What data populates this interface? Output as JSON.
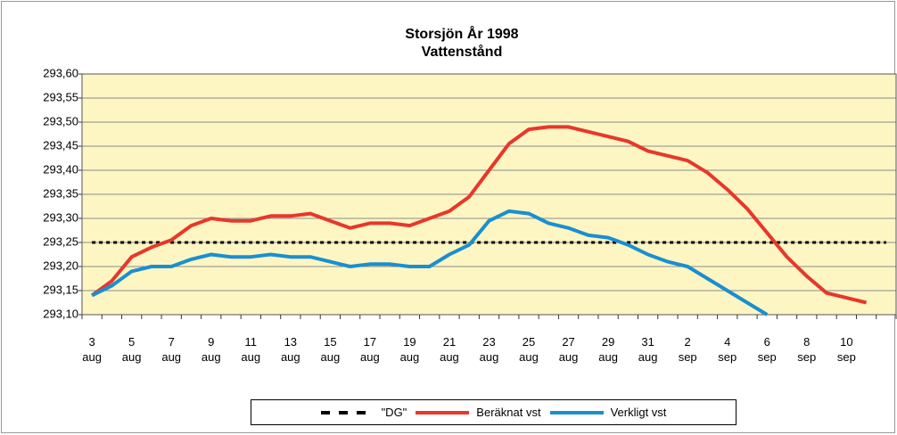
{
  "chart_data": {
    "type": "line",
    "title": "Storsjön År 1998",
    "subtitle": "Vattenstånd",
    "categories": [
      "3 aug",
      null,
      "5 aug",
      null,
      "7 aug",
      null,
      "9 aug",
      null,
      "11 aug",
      null,
      "13 aug",
      null,
      "15 aug",
      null,
      "17 aug",
      null,
      "19 aug",
      null,
      "21 aug",
      null,
      "23 aug",
      null,
      "25 aug",
      null,
      "27 aug",
      null,
      "29 aug",
      null,
      "31 aug",
      null,
      "2 sep",
      null,
      "4 sep",
      null,
      "6 sep",
      null,
      "8 sep",
      null,
      "10 sep",
      null,
      null
    ],
    "series": [
      {
        "name": "\"DG\"",
        "color": "#000000",
        "dashed": true,
        "values": [
          293.25,
          293.25,
          293.25,
          293.25,
          293.25,
          293.25,
          293.25,
          293.25,
          293.25,
          293.25,
          293.25,
          293.25,
          293.25,
          293.25,
          293.25,
          293.25,
          293.25,
          293.25,
          293.25,
          293.25,
          293.25,
          293.25,
          293.25,
          293.25,
          293.25,
          293.25,
          293.25,
          293.25,
          293.25,
          293.25,
          293.25,
          293.25,
          293.25,
          293.25,
          293.25,
          293.25,
          293.25,
          293.25,
          293.25,
          293.25,
          293.25
        ]
      },
      {
        "name": "Beräknat vst",
        "color": "#e8372b",
        "values": [
          293.14,
          293.17,
          293.22,
          293.24,
          293.255,
          293.285,
          293.3,
          293.295,
          293.295,
          293.305,
          293.305,
          293.31,
          293.295,
          293.28,
          293.29,
          293.29,
          293.285,
          293.3,
          293.315,
          293.345,
          293.4,
          293.455,
          293.485,
          293.49,
          293.49,
          293.48,
          293.47,
          293.46,
          293.44,
          293.43,
          293.42,
          293.395,
          293.36,
          293.32,
          293.27,
          293.22,
          293.18,
          293.145,
          293.135,
          293.125,
          null
        ]
      },
      {
        "name": "Verkligt vst",
        "color": "#1a8fd0",
        "values": [
          293.14,
          293.16,
          293.19,
          293.2,
          293.2,
          293.215,
          293.225,
          293.22,
          293.22,
          293.225,
          293.22,
          293.22,
          293.21,
          293.2,
          293.205,
          293.205,
          293.2,
          293.2,
          293.225,
          293.245,
          293.295,
          293.315,
          293.31,
          293.29,
          293.28,
          293.265,
          293.26,
          293.245,
          293.225,
          293.21,
          293.2,
          293.175,
          293.15,
          293.125,
          293.1,
          null,
          null,
          null,
          null,
          null,
          null
        ]
      }
    ],
    "ylim": [
      293.1,
      293.6
    ],
    "yticks": [
      {
        "value": 293.1,
        "label": "293,10"
      },
      {
        "value": 293.15,
        "label": "293,15"
      },
      {
        "value": 293.2,
        "label": "293,20"
      },
      {
        "value": 293.25,
        "label": "293,25"
      },
      {
        "value": 293.3,
        "label": "293,30"
      },
      {
        "value": 293.35,
        "label": "293,35"
      },
      {
        "value": 293.4,
        "label": "293,40"
      },
      {
        "value": 293.45,
        "label": "293,45"
      },
      {
        "value": 293.5,
        "label": "293,50"
      },
      {
        "value": 293.55,
        "label": "293,55"
      },
      {
        "value": 293.6,
        "label": "293,60"
      }
    ],
    "grid": true,
    "legend": "bottom",
    "plot_background": "#fdf6c3"
  }
}
